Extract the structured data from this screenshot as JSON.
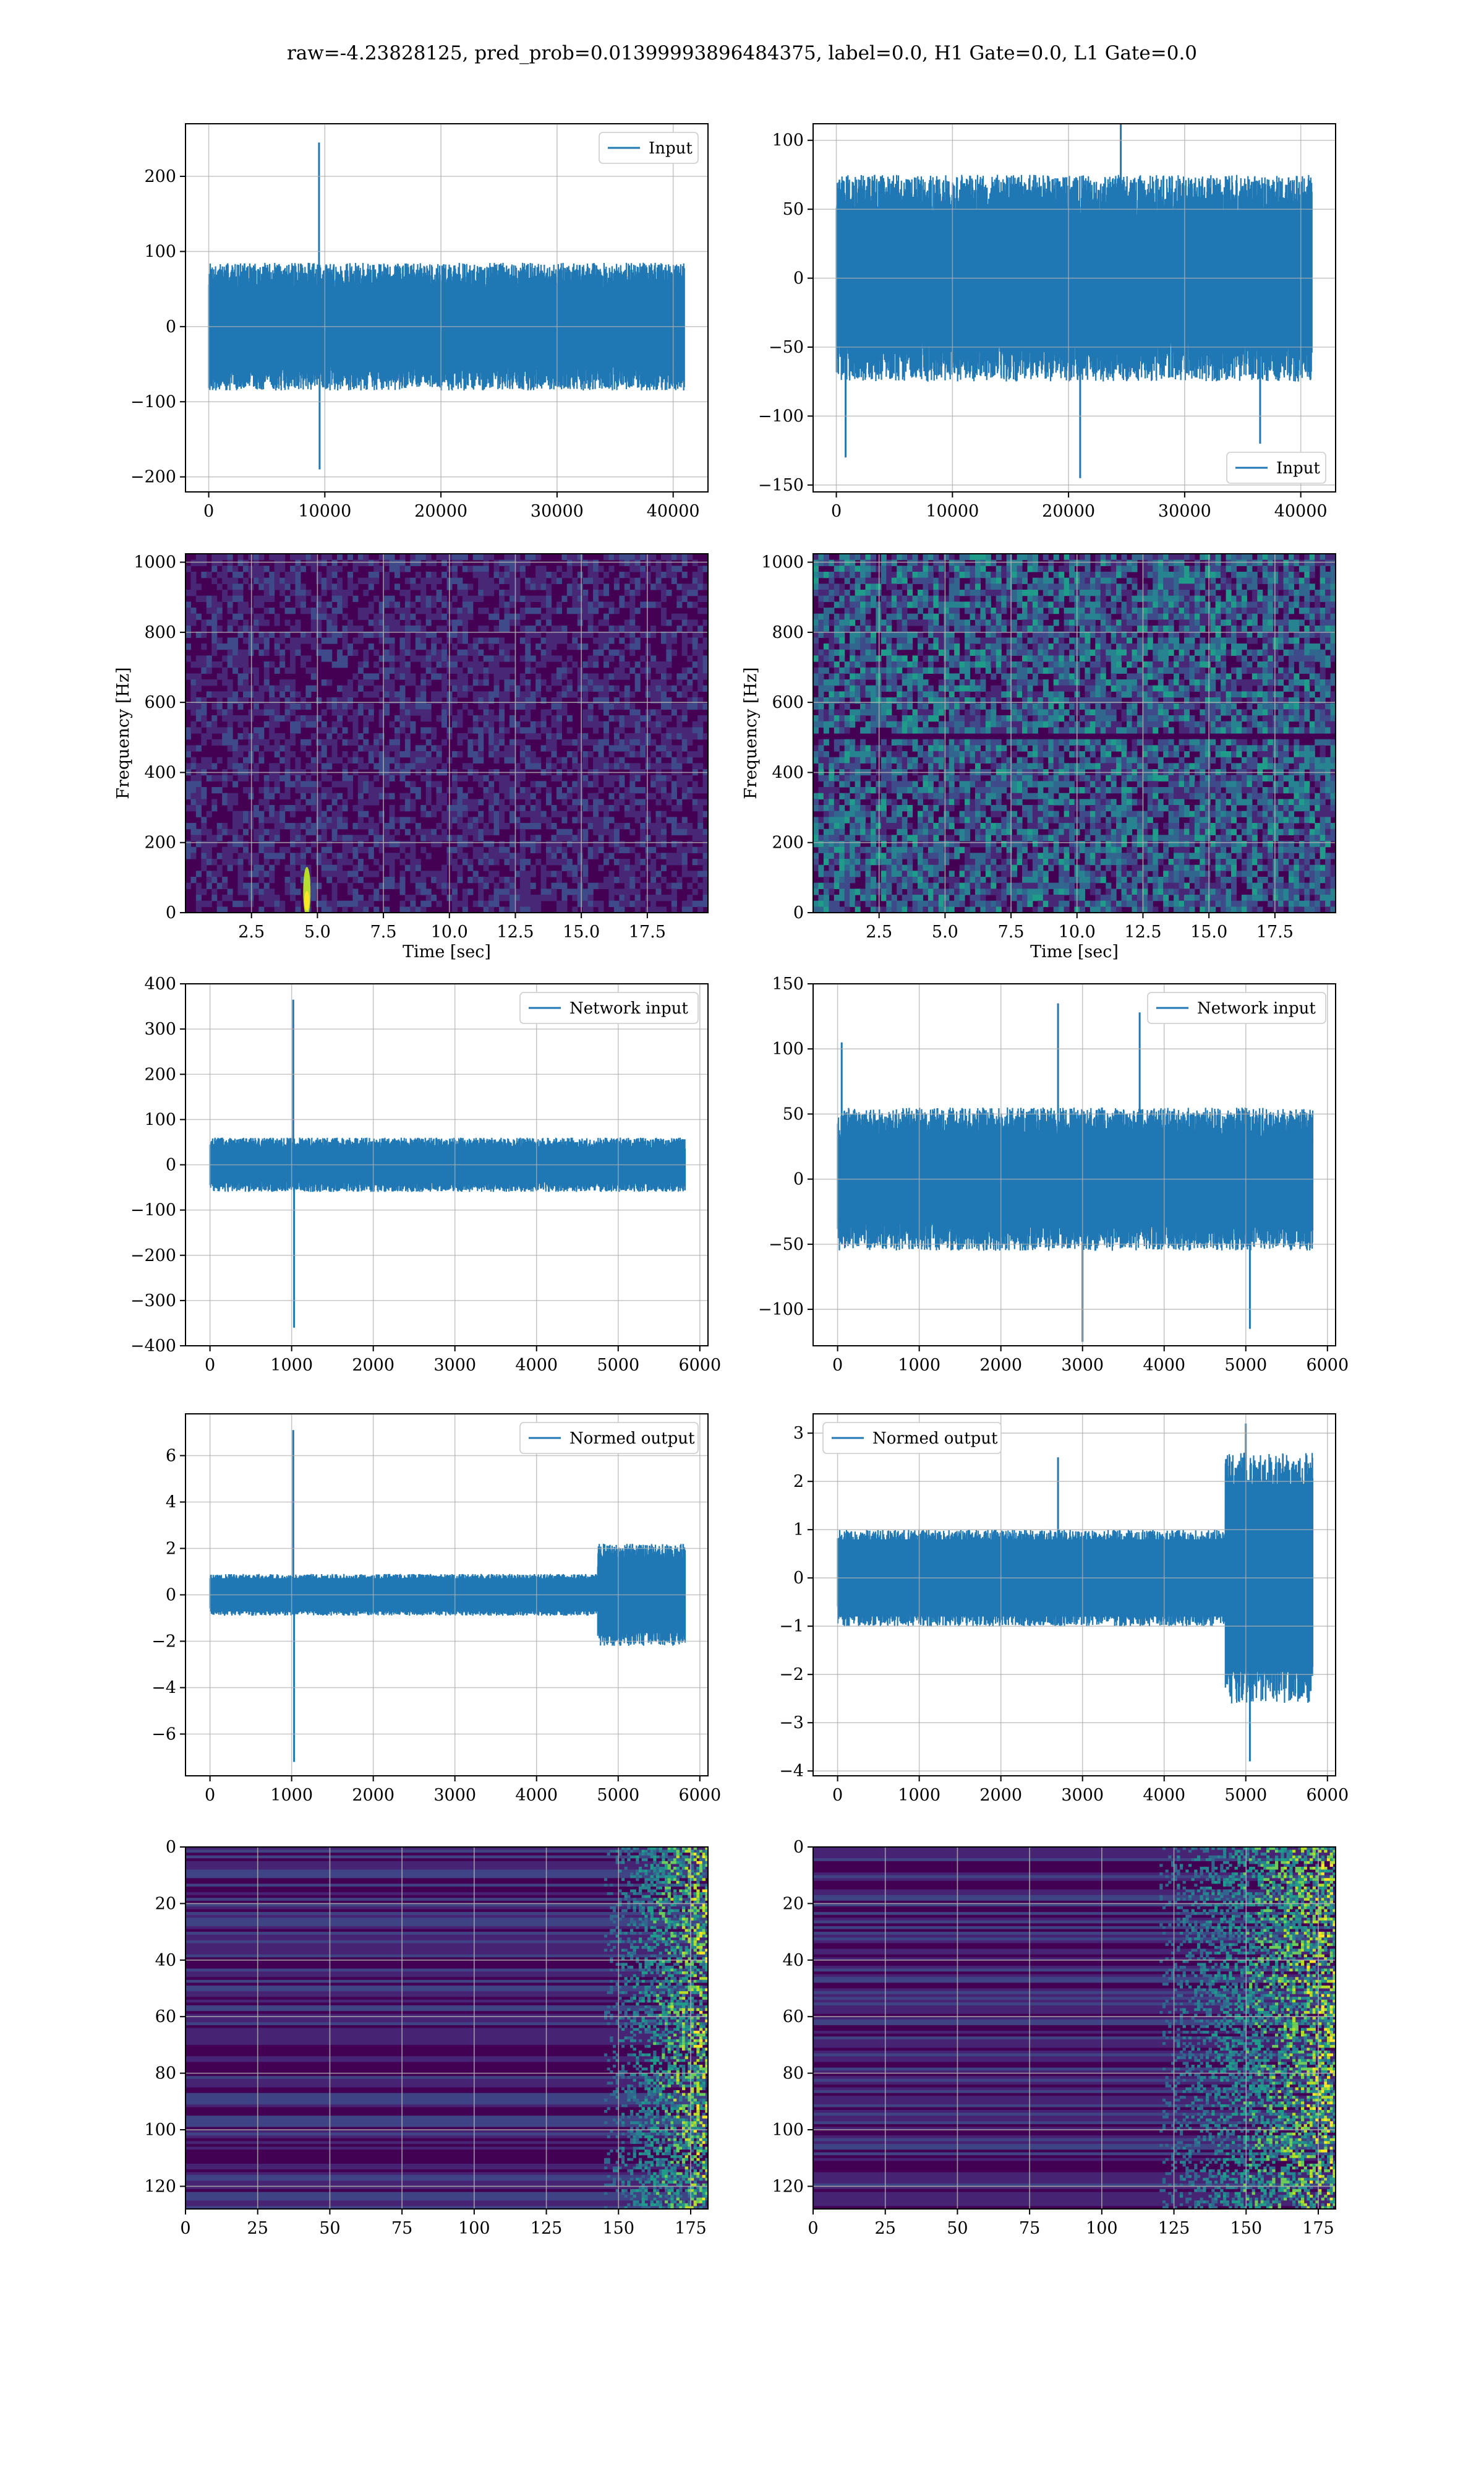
{
  "title": "raw=-4.23828125, pred_prob=0.01399993896484375, label=0.0, H1 Gate=0.0, L1 Gate=0.0",
  "colors": {
    "line": "#1f77b4",
    "grid": "#b0b0b0",
    "viridis_dark": "#440154"
  },
  "chart_data": [
    {
      "id": "input-h1",
      "type": "line",
      "row": 0,
      "col": 0,
      "xlim": [
        -2000,
        43000
      ],
      "ylim": [
        -220,
        270
      ],
      "xticks": [
        0,
        10000,
        20000,
        30000,
        40000
      ],
      "yticks": [
        -200,
        -100,
        0,
        100,
        200
      ],
      "series": [
        {
          "name": "Input",
          "x_range": [
            0,
            40960
          ],
          "band": [
            -85,
            85
          ],
          "spikes": [
            [
              9500,
              245
            ],
            [
              9550,
              -190
            ]
          ]
        }
      ],
      "legend": "top-right",
      "grid": true,
      "xlabel": "",
      "ylabel": ""
    },
    {
      "id": "input-l1",
      "type": "line",
      "row": 0,
      "col": 1,
      "xlim": [
        -2000,
        43000
      ],
      "ylim": [
        -155,
        112
      ],
      "xticks": [
        0,
        10000,
        20000,
        30000,
        40000
      ],
      "yticks": [
        -150,
        -100,
        -50,
        0,
        50,
        100
      ],
      "series": [
        {
          "name": "Input",
          "x_range": [
            0,
            40960
          ],
          "band": [
            -75,
            75
          ],
          "spikes": [
            [
              24500,
              125
            ],
            [
              21000,
              -145
            ],
            [
              800,
              -130
            ],
            [
              36500,
              -120
            ]
          ]
        }
      ],
      "legend": "bottom-right",
      "grid": true,
      "xlabel": "",
      "ylabel": ""
    },
    {
      "id": "spectrogram-h1",
      "type": "heatmap",
      "row": 1,
      "col": 0,
      "xlim": [
        0,
        19.8
      ],
      "ylim": [
        0,
        1024
      ],
      "xticks": [
        2.5,
        5.0,
        7.5,
        10.0,
        12.5,
        15.0,
        17.5
      ],
      "yticks": [
        0,
        200,
        400,
        600,
        800,
        1000
      ],
      "xlabel": "Time [sec]",
      "ylabel": "Frequency [Hz]",
      "grid": true,
      "hotspot": {
        "x": 4.6,
        "y": 60
      }
    },
    {
      "id": "spectrogram-l1",
      "type": "heatmap",
      "row": 1,
      "col": 1,
      "xlim": [
        0,
        19.8
      ],
      "ylim": [
        0,
        1024
      ],
      "xticks": [
        2.5,
        5.0,
        7.5,
        10.0,
        12.5,
        15.0,
        17.5
      ],
      "yticks": [
        0,
        200,
        400,
        600,
        800,
        1000
      ],
      "xlabel": "Time [sec]",
      "ylabel": "Frequency [Hz]",
      "grid": true,
      "line_at": 500
    },
    {
      "id": "network-input-h1",
      "type": "line",
      "row": 2,
      "col": 0,
      "xlim": [
        -300,
        6100
      ],
      "ylim": [
        -400,
        400
      ],
      "xticks": [
        0,
        1000,
        2000,
        3000,
        4000,
        5000,
        6000
      ],
      "yticks": [
        -400,
        -300,
        -200,
        -100,
        0,
        100,
        200,
        300,
        400
      ],
      "series": [
        {
          "name": "Network input",
          "x_range": [
            0,
            5820
          ],
          "band": [
            -60,
            60
          ],
          "spikes": [
            [
              1020,
              365
            ],
            [
              1030,
              -360
            ]
          ]
        }
      ],
      "legend": "top-right",
      "grid": true,
      "xlabel": "",
      "ylabel": ""
    },
    {
      "id": "network-input-l1",
      "type": "line",
      "row": 2,
      "col": 1,
      "xlim": [
        -300,
        6100
      ],
      "ylim": [
        -128,
        150
      ],
      "xticks": [
        0,
        1000,
        2000,
        3000,
        4000,
        5000,
        6000
      ],
      "yticks": [
        -100,
        -50,
        0,
        50,
        100,
        150
      ],
      "series": [
        {
          "name": "Network input",
          "x_range": [
            0,
            5820
          ],
          "band": [
            -55,
            55
          ],
          "spikes": [
            [
              2700,
              135
            ],
            [
              3000,
              -125
            ],
            [
              3700,
              128
            ],
            [
              5050,
              -115
            ],
            [
              50,
              105
            ]
          ]
        }
      ],
      "legend": "top-right",
      "grid": true,
      "xlabel": "",
      "ylabel": ""
    },
    {
      "id": "normed-output-h1",
      "type": "line",
      "row": 3,
      "col": 0,
      "xlim": [
        -300,
        6100
      ],
      "ylim": [
        -7.8,
        7.8
      ],
      "xticks": [
        0,
        1000,
        2000,
        3000,
        4000,
        5000,
        6000
      ],
      "yticks": [
        -6,
        -4,
        -2,
        0,
        2,
        4,
        6
      ],
      "series": [
        {
          "name": "Normed output",
          "x_range": [
            0,
            5820
          ],
          "band": [
            -0.9,
            0.9
          ],
          "loud": [
            4750,
            5820,
            2.2
          ],
          "spikes": [
            [
              1020,
              7.1
            ],
            [
              1030,
              -7.2
            ]
          ]
        }
      ],
      "legend": "top-right",
      "grid": true,
      "xlabel": "",
      "ylabel": ""
    },
    {
      "id": "normed-output-l1",
      "type": "line",
      "row": 3,
      "col": 1,
      "xlim": [
        -300,
        6100
      ],
      "ylim": [
        -4.1,
        3.4
      ],
      "xticks": [
        0,
        1000,
        2000,
        3000,
        4000,
        5000,
        6000
      ],
      "yticks": [
        -4,
        -3,
        -2,
        -1,
        0,
        1,
        2,
        3
      ],
      "series": [
        {
          "name": "Normed output",
          "x_range": [
            0,
            5820
          ],
          "band": [
            -1.0,
            1.0
          ],
          "loud": [
            4750,
            5820,
            2.6
          ],
          "spikes": [
            [
              2700,
              2.5
            ],
            [
              5050,
              -3.8
            ],
            [
              5000,
              3.2
            ]
          ]
        }
      ],
      "legend": "top-left",
      "grid": true,
      "xlabel": "",
      "ylabel": ""
    },
    {
      "id": "features-h1",
      "type": "heatmap",
      "row": 4,
      "col": 0,
      "xlim": [
        0,
        181
      ],
      "ylim": [
        128,
        0
      ],
      "xticks": [
        0,
        25,
        50,
        75,
        100,
        125,
        150,
        175
      ],
      "yticks": [
        0,
        20,
        40,
        60,
        80,
        100,
        120
      ],
      "xlabel": "",
      "ylabel": "",
      "grid": true,
      "active_from": 145
    },
    {
      "id": "features-l1",
      "type": "heatmap",
      "row": 4,
      "col": 1,
      "xlim": [
        0,
        181
      ],
      "ylim": [
        128,
        0
      ],
      "xticks": [
        0,
        25,
        50,
        75,
        100,
        125,
        150,
        175
      ],
      "yticks": [
        0,
        20,
        40,
        60,
        80,
        100,
        120
      ],
      "xlabel": "",
      "ylabel": "",
      "grid": true,
      "active_from": 120
    }
  ]
}
